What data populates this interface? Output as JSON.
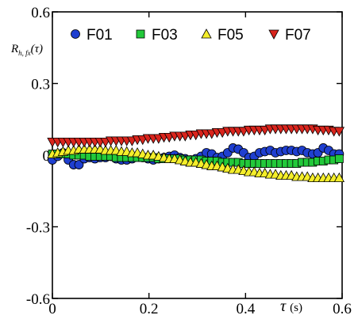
{
  "chart_data": {
    "type": "scatter",
    "title": "",
    "xlabel": "τ (s)",
    "xlabel_main": "τ",
    "xlabel_unit": "(s)",
    "ylabel": "R_h,fx(τ)",
    "ylabel_main": "R",
    "ylabel_sub": "h, fx",
    "ylabel_arg": "(τ)",
    "xlim": [
      0,
      0.6
    ],
    "ylim": [
      -0.6,
      0.6
    ],
    "xticks": [
      0,
      0.2,
      0.4,
      0.6
    ],
    "xtick_labels": [
      "0",
      "0.2",
      "0.4",
      "0.6"
    ],
    "yticks": [
      -0.6,
      -0.3,
      0,
      0.3,
      0.6
    ],
    "ytick_labels": [
      "-0.6",
      "-0.3",
      "0",
      "0.3",
      "0.6"
    ],
    "grid": false,
    "legend_position": "top",
    "series": [
      {
        "name": "F01",
        "marker": "circle",
        "color": "#1f3fd0",
        "x": [
          0,
          0.011,
          0.022,
          0.033,
          0.044,
          0.055,
          0.066,
          0.077,
          0.088,
          0.099,
          0.11,
          0.121,
          0.132,
          0.143,
          0.154,
          0.165,
          0.176,
          0.187,
          0.198,
          0.209,
          0.22,
          0.231,
          0.242,
          0.253,
          0.264,
          0.275,
          0.286,
          0.297,
          0.308,
          0.319,
          0.33,
          0.341,
          0.352,
          0.363,
          0.374,
          0.385,
          0.396,
          0.407,
          0.418,
          0.429,
          0.44,
          0.451,
          0.462,
          0.473,
          0.484,
          0.495,
          0.506,
          0.517,
          0.528,
          0.539,
          0.55,
          0.561,
          0.572,
          0.583,
          0.594
        ],
        "y": [
          -0.02,
          -0.005,
          0.01,
          -0.02,
          -0.04,
          -0.04,
          -0.015,
          -0.01,
          -0.015,
          -0.01,
          -0.01,
          -0.005,
          -0.015,
          -0.02,
          -0.02,
          -0.015,
          -0.005,
          -0.01,
          -0.015,
          -0.02,
          -0.015,
          -0.01,
          -0.005,
          0,
          -0.01,
          -0.015,
          -0.02,
          -0.015,
          -0.005,
          0.01,
          0.005,
          -0.01,
          -0.005,
          0.01,
          0.03,
          0.025,
          0.01,
          -0.01,
          -0.005,
          0.01,
          0.015,
          0.02,
          0.01,
          0.015,
          0.02,
          0.02,
          0.015,
          0.02,
          0.01,
          0.005,
          0.01,
          0.03,
          0.02,
          0.005,
          0.005
        ]
      },
      {
        "name": "F03",
        "marker": "square",
        "color": "#22c93a",
        "x": [
          0,
          0.011,
          0.022,
          0.033,
          0.044,
          0.055,
          0.066,
          0.077,
          0.088,
          0.099,
          0.11,
          0.121,
          0.132,
          0.143,
          0.154,
          0.165,
          0.176,
          0.187,
          0.198,
          0.209,
          0.22,
          0.231,
          0.242,
          0.253,
          0.264,
          0.275,
          0.286,
          0.297,
          0.308,
          0.319,
          0.33,
          0.341,
          0.352,
          0.363,
          0.374,
          0.385,
          0.396,
          0.407,
          0.418,
          0.429,
          0.44,
          0.451,
          0.462,
          0.473,
          0.484,
          0.495,
          0.506,
          0.517,
          0.528,
          0.539,
          0.55,
          0.561,
          0.572,
          0.583,
          0.594
        ],
        "y": [
          0.005,
          0.005,
          0.005,
          0.005,
          0,
          0,
          0,
          -0.005,
          -0.005,
          -0.005,
          -0.005,
          -0.005,
          -0.01,
          -0.01,
          -0.01,
          -0.01,
          -0.01,
          -0.01,
          -0.01,
          -0.01,
          -0.015,
          -0.015,
          -0.015,
          -0.015,
          -0.015,
          -0.02,
          -0.02,
          -0.02,
          -0.02,
          -0.025,
          -0.025,
          -0.025,
          -0.03,
          -0.03,
          -0.03,
          -0.03,
          -0.035,
          -0.035,
          -0.035,
          -0.035,
          -0.035,
          -0.035,
          -0.035,
          -0.035,
          -0.035,
          -0.035,
          -0.035,
          -0.03,
          -0.03,
          -0.03,
          -0.025,
          -0.025,
          -0.02,
          -0.02,
          -0.015
        ]
      },
      {
        "name": "F05",
        "marker": "triangle-up",
        "color": "#f4ee2a",
        "x": [
          0,
          0.011,
          0.022,
          0.033,
          0.044,
          0.055,
          0.066,
          0.077,
          0.088,
          0.099,
          0.11,
          0.121,
          0.132,
          0.143,
          0.154,
          0.165,
          0.176,
          0.187,
          0.198,
          0.209,
          0.22,
          0.231,
          0.242,
          0.253,
          0.264,
          0.275,
          0.286,
          0.297,
          0.308,
          0.319,
          0.33,
          0.341,
          0.352,
          0.363,
          0.374,
          0.385,
          0.396,
          0.407,
          0.418,
          0.429,
          0.44,
          0.451,
          0.462,
          0.473,
          0.484,
          0.495,
          0.506,
          0.517,
          0.528,
          0.539,
          0.55,
          0.561,
          0.572,
          0.583,
          0.594
        ],
        "y": [
          0.005,
          0.01,
          0.015,
          0.02,
          0.02,
          0.025,
          0.025,
          0.025,
          0.025,
          0.025,
          0.02,
          0.02,
          0.02,
          0.015,
          0.015,
          0.01,
          0.01,
          0.005,
          0,
          0,
          -0.005,
          -0.01,
          -0.015,
          -0.015,
          -0.02,
          -0.025,
          -0.03,
          -0.03,
          -0.035,
          -0.04,
          -0.045,
          -0.045,
          -0.05,
          -0.055,
          -0.06,
          -0.06,
          -0.065,
          -0.07,
          -0.07,
          -0.075,
          -0.075,
          -0.08,
          -0.08,
          -0.085,
          -0.085,
          -0.085,
          -0.09,
          -0.09,
          -0.09,
          -0.095,
          -0.095,
          -0.095,
          -0.095,
          -0.095,
          -0.095
        ]
      },
      {
        "name": "F07",
        "marker": "triangle-down",
        "color": "#d9241c",
        "x": [
          0,
          0.011,
          0.022,
          0.033,
          0.044,
          0.055,
          0.066,
          0.077,
          0.088,
          0.099,
          0.11,
          0.121,
          0.132,
          0.143,
          0.154,
          0.165,
          0.176,
          0.187,
          0.198,
          0.209,
          0.22,
          0.231,
          0.242,
          0.253,
          0.264,
          0.275,
          0.286,
          0.297,
          0.308,
          0.319,
          0.33,
          0.341,
          0.352,
          0.363,
          0.374,
          0.385,
          0.396,
          0.407,
          0.418,
          0.429,
          0.44,
          0.451,
          0.462,
          0.473,
          0.484,
          0.495,
          0.506,
          0.517,
          0.528,
          0.539,
          0.55,
          0.561,
          0.572,
          0.583,
          0.594
        ],
        "y": [
          0.055,
          0.055,
          0.055,
          0.055,
          0.055,
          0.055,
          0.055,
          0.055,
          0.055,
          0.055,
          0.055,
          0.06,
          0.06,
          0.06,
          0.06,
          0.06,
          0.065,
          0.065,
          0.07,
          0.07,
          0.07,
          0.075,
          0.075,
          0.08,
          0.08,
          0.08,
          0.085,
          0.085,
          0.09,
          0.09,
          0.09,
          0.095,
          0.095,
          0.1,
          0.1,
          0.1,
          0.1,
          0.105,
          0.105,
          0.105,
          0.105,
          0.11,
          0.11,
          0.11,
          0.11,
          0.11,
          0.11,
          0.11,
          0.11,
          0.11,
          0.105,
          0.105,
          0.105,
          0.1,
          0.1
        ]
      }
    ]
  }
}
